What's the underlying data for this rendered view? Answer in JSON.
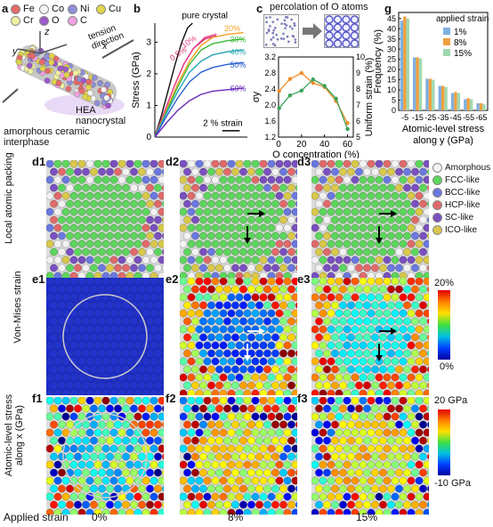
{
  "panel_a": {
    "letter": "a",
    "elements": [
      {
        "symbol": "Fe",
        "color": "#e66a6a"
      },
      {
        "symbol": "Co",
        "color": "#f5f5f5"
      },
      {
        "symbol": "Ni",
        "color": "#8f8fd9"
      },
      {
        "symbol": "Cu",
        "color": "#e0d44a"
      },
      {
        "symbol": "Cr",
        "color": "#f0f0a0"
      },
      {
        "symbol": "O",
        "color": "#9b59c9"
      },
      {
        "symbol": "C",
        "color": "#f2a0e0"
      }
    ],
    "axis_z": "z",
    "axis_y": "y",
    "axis_x": "x",
    "tension_label": "tension direction",
    "hea_label": "HEA nanocrystal",
    "interphase_label": "amorphous ceramic interphase"
  },
  "panel_b": {
    "letter": "b",
    "pure_label": "pure crystal",
    "strain_bar": "2 % strain"
  },
  "panel_c": {
    "letter": "c",
    "title": "percolation of O atoms"
  },
  "panel_g": {
    "letter": "g",
    "legend_title": "applied strain"
  },
  "panel_d": {
    "letters": [
      "d1",
      "d2",
      "d3"
    ],
    "row_label": "Local atomic packing",
    "legend": [
      {
        "label": "Amorphous",
        "color": "#f2f2f2"
      },
      {
        "label": "FCC-like",
        "color": "#5cd65c"
      },
      {
        "label": "BCC-like",
        "color": "#6a78e0"
      },
      {
        "label": "HCP-like",
        "color": "#e06a6a"
      },
      {
        "label": "SC-like",
        "color": "#7a4fc0"
      },
      {
        "label": "ICO-like",
        "color": "#d9c84a"
      }
    ]
  },
  "panel_e": {
    "letters": [
      "e1",
      "e2",
      "e3"
    ],
    "row_label": "Von-Mises strain",
    "cbar_max": "20%",
    "cbar_min": "0%"
  },
  "panel_f": {
    "letters": [
      "f1",
      "f2",
      "f3"
    ],
    "row_label": "Atomic-level stress along x (GPa)",
    "cbar_max": "20 GPa",
    "cbar_min": "-10 GPa"
  },
  "bottom": {
    "applied_label": "Applied strain",
    "strains": [
      "0%",
      "8%",
      "15%"
    ]
  },
  "chart_data": [
    {
      "type": "line",
      "ylabel": "Stress (GPa)",
      "yticks": [
        "0",
        "1",
        "2",
        "3"
      ],
      "ylim": [
        0,
        3.6
      ],
      "series": [
        {
          "name": "pure crystal",
          "color": "#111111",
          "x": [
            0,
            0.35,
            0.7,
            1.05,
            1.4,
            1.7,
            1.95
          ],
          "y": [
            0,
            0.7,
            1.5,
            2.3,
            3.0,
            3.45,
            3.6
          ]
        },
        {
          "name": "0.5%",
          "color": "#d6336c",
          "x": [
            0,
            0.5,
            1.0,
            1.5,
            2.0,
            2.6,
            3.2
          ],
          "y": [
            0,
            0.8,
            1.6,
            2.3,
            2.8,
            3.1,
            3.2
          ]
        },
        {
          "name": "10%",
          "color": "#e8408a",
          "x": [
            0,
            0.5,
            1.0,
            1.5,
            2.0,
            2.6,
            3.2
          ],
          "y": [
            0,
            0.8,
            1.6,
            2.3,
            2.8,
            3.15,
            3.25
          ]
        },
        {
          "name": "20%",
          "color": "#f4a020",
          "x": [
            0,
            0.6,
            1.2,
            1.8,
            2.4,
            3.0,
            3.8,
            4.6
          ],
          "y": [
            0,
            0.85,
            1.7,
            2.4,
            2.9,
            3.15,
            3.25,
            3.3
          ]
        },
        {
          "name": "30%",
          "color": "#3dbb3d",
          "x": [
            0,
            0.6,
            1.2,
            1.8,
            2.4,
            3.0,
            3.8,
            4.6
          ],
          "y": [
            0,
            0.8,
            1.6,
            2.3,
            2.75,
            2.95,
            3.05,
            3.1
          ]
        },
        {
          "name": "40%",
          "color": "#2aa6b5",
          "x": [
            0,
            0.6,
            1.2,
            1.8,
            2.4,
            3.0,
            3.8,
            4.6
          ],
          "y": [
            0,
            0.75,
            1.45,
            2.05,
            2.4,
            2.6,
            2.7,
            2.75
          ]
        },
        {
          "name": "50%",
          "color": "#2a5fd0",
          "x": [
            0,
            0.6,
            1.2,
            1.8,
            2.4,
            3.0,
            3.8,
            4.6
          ],
          "y": [
            0,
            0.65,
            1.25,
            1.75,
            2.05,
            2.2,
            2.3,
            2.35
          ]
        },
        {
          "name": "60%",
          "color": "#6a2bb8",
          "x": [
            0,
            0.6,
            1.2,
            1.8,
            2.4,
            3.0,
            3.8,
            4.6
          ],
          "y": [
            0,
            0.45,
            0.85,
            1.15,
            1.35,
            1.45,
            1.5,
            1.55
          ]
        }
      ],
      "labels": [
        "0.5%",
        "10%",
        "20%",
        "30%",
        "40%",
        "50%",
        "60%"
      ]
    },
    {
      "type": "line",
      "xlabel": "O concentration (%)",
      "ylabel_left": "σy",
      "ylabel_right": "Uniform strain (%)",
      "xticks": [
        "0",
        "20",
        "40",
        "60"
      ],
      "yticks_left": [
        "1.2",
        "1.6",
        "2.0",
        "2.4",
        "2.8",
        "3.2"
      ],
      "yticks_right": [
        "5",
        "6",
        "7",
        "8",
        "9",
        "10"
      ],
      "x": [
        0.5,
        10,
        20,
        30,
        40,
        50,
        60
      ],
      "series": [
        {
          "name": "σy",
          "color": "#f28c28",
          "axis": "left",
          "y": [
            2.35,
            2.65,
            2.8,
            2.55,
            2.45,
            2.1,
            1.55
          ]
        },
        {
          "name": "Uniform strain",
          "color": "#3aa35a",
          "axis": "right",
          "y": [
            6.8,
            7.6,
            7.9,
            8.6,
            8.2,
            7.4,
            5.5
          ]
        }
      ]
    },
    {
      "type": "bar",
      "xlabel": "Atomic-level stress along y (GPa)",
      "ylabel": "Frequency (%)",
      "categories": [
        "-5",
        "-15",
        "-25",
        "-35",
        "-45",
        "-55",
        "-65"
      ],
      "yticks": [
        "0",
        "5",
        "10",
        "15",
        "20",
        "25",
        "30",
        "35",
        "40",
        "45"
      ],
      "ylim": [
        0,
        48
      ],
      "series": [
        {
          "name": "1%",
          "color": "#7fb0e0",
          "values": [
            44,
            26,
            15.5,
            12,
            8.5,
            5.5,
            3.5
          ]
        },
        {
          "name": "8%",
          "color": "#f0a040",
          "values": [
            46,
            26,
            15.5,
            12,
            9,
            6,
            3.5
          ]
        },
        {
          "name": "15%",
          "color": "#a0d8b0",
          "values": [
            45,
            25.5,
            15,
            11.5,
            8.5,
            5.5,
            3
          ]
        }
      ]
    }
  ]
}
